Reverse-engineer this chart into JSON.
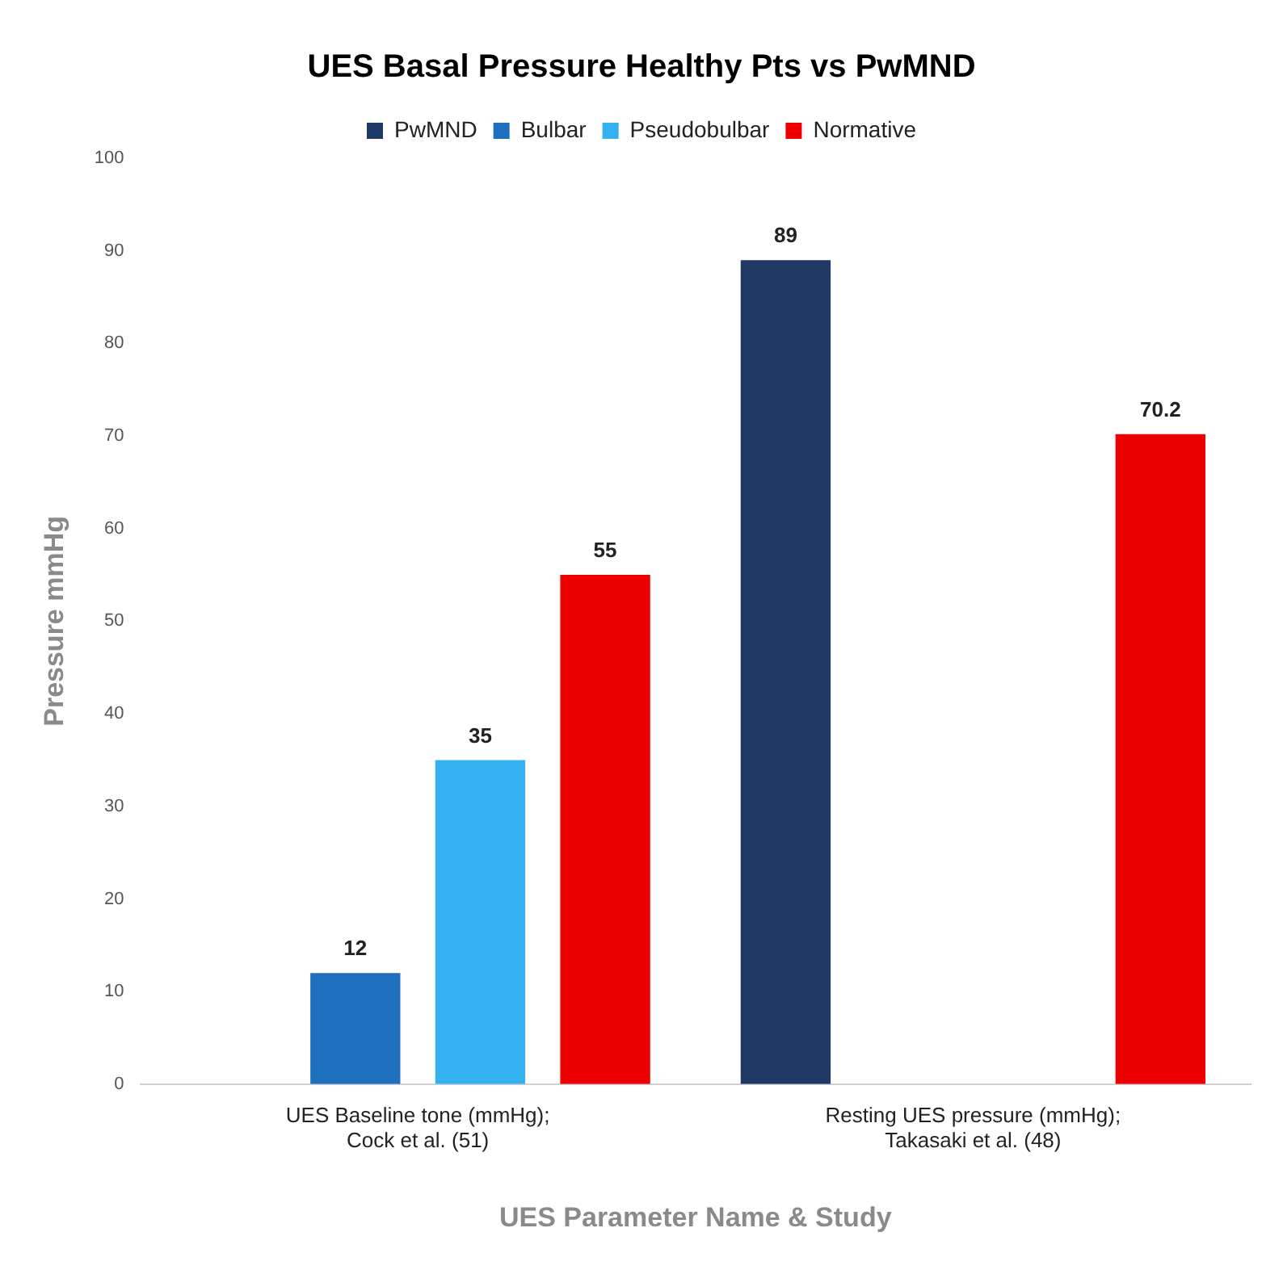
{
  "chart_data": {
    "type": "bar",
    "title": "UES Basal Pressure Healthy Pts vs PwMND",
    "xlabel": "UES Parameter Name & Study",
    "ylabel": "Pressure mmHg",
    "categories": [
      "UES Baseline tone (mmHg); Cock et al. (51)",
      "Resting UES pressure (mmHg); Takasaki et al. (48)"
    ],
    "series": [
      {
        "name": "PwMND",
        "color": "#1f3864",
        "values": [
          null,
          89
        ]
      },
      {
        "name": "Bulbar",
        "color": "#1f6fbf",
        "values": [
          12,
          null
        ]
      },
      {
        "name": "Pseudobulbar",
        "color": "#35b0f0",
        "values": [
          35,
          null
        ]
      },
      {
        "name": "Normative",
        "color": "#ee0000",
        "values": [
          55,
          70.2
        ]
      }
    ],
    "ylim": [
      0,
      100
    ],
    "yticks": [
      0,
      10,
      20,
      30,
      40,
      50,
      60,
      70,
      80,
      90,
      100
    ],
    "grid": false,
    "legend": "top",
    "data_labels": true
  }
}
